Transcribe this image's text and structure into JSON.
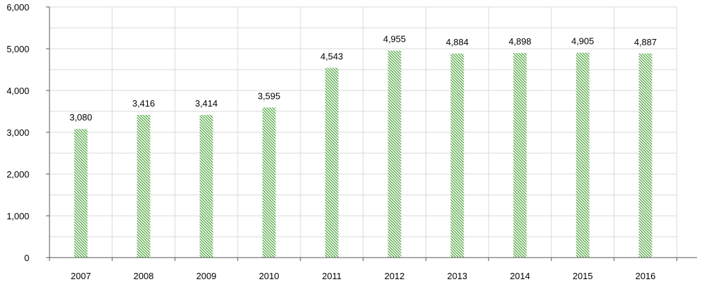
{
  "chart_data": {
    "type": "bar",
    "title": "",
    "xlabel": "",
    "ylabel": "",
    "categories": [
      "2007",
      "2008",
      "2009",
      "2010",
      "2011",
      "2012",
      "2013",
      "2014",
      "2015",
      "2016"
    ],
    "values": [
      3080,
      3416,
      3414,
      3595,
      4543,
      4955,
      4884,
      4898,
      4905,
      4887
    ],
    "value_labels": [
      "3,080",
      "3,416",
      "3,414",
      "3,595",
      "4,543",
      "4,955",
      "4,884",
      "4,898",
      "4,905",
      "4,887"
    ],
    "ylim": [
      0,
      6000
    ],
    "y_ticks": [
      0,
      1000,
      2000,
      3000,
      4000,
      5000,
      6000
    ],
    "y_tick_labels": [
      "0",
      "1,000",
      "2,000",
      "3,000",
      "4,000",
      "5,000",
      "6,000"
    ],
    "grid": true,
    "legend": "none",
    "bar_fill": "hatched",
    "colors": {
      "bar_hatch": "#4aa33a",
      "grid": "#d9d9d9",
      "axis": "#555555",
      "text": "#000000"
    }
  }
}
